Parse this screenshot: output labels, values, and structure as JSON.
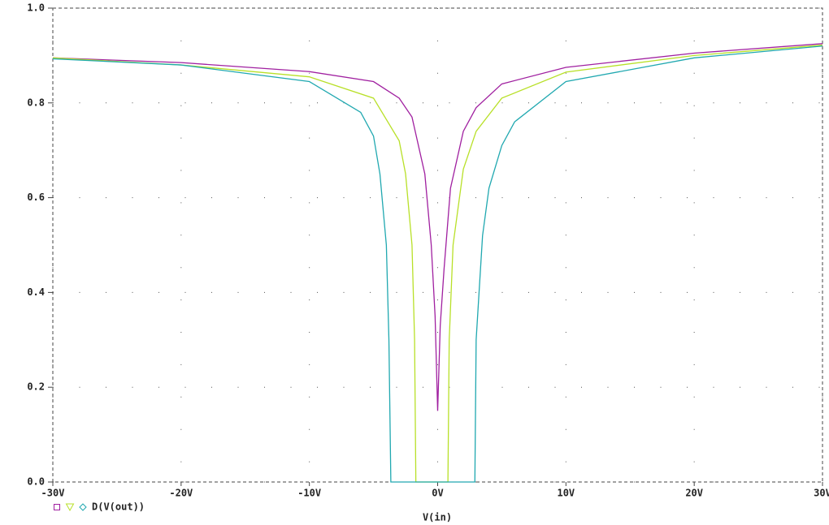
{
  "chart_data": {
    "type": "line",
    "x_label": "V(in)",
    "legend_label": "D(V(out))",
    "xlim": [
      -30,
      30
    ],
    "ylim": [
      0,
      1
    ],
    "xticks": [
      {
        "value": -30,
        "label": "-30V"
      },
      {
        "value": -20,
        "label": "-20V"
      },
      {
        "value": -10,
        "label": "-10V"
      },
      {
        "value": 0,
        "label": "0V"
      },
      {
        "value": 10,
        "label": "10V"
      },
      {
        "value": 20,
        "label": "20V"
      },
      {
        "value": 30,
        "label": "30V"
      }
    ],
    "yticks": [
      {
        "value": 0,
        "label": "0.0"
      },
      0.2,
      0.4,
      0.6,
      0.8,
      {
        "value": 1,
        "label": "1.0"
      }
    ],
    "grid": true,
    "series": [
      {
        "color": "#a020a0",
        "marker": "square",
        "x": [
          -30,
          -20,
          -10,
          -5,
          -3,
          -2,
          -1,
          -0.5,
          -0.2,
          0,
          0.2,
          0.5,
          1,
          2,
          3,
          5,
          10,
          20,
          30
        ],
        "values": [
          0.895,
          0.885,
          0.866,
          0.845,
          0.81,
          0.77,
          0.65,
          0.5,
          0.35,
          0.15,
          0.33,
          0.45,
          0.62,
          0.74,
          0.79,
          0.84,
          0.875,
          0.905,
          0.925
        ]
      },
      {
        "color": "#b8e028",
        "marker": "triangle",
        "x": [
          -30,
          -20,
          -10,
          -5,
          -3,
          -2.5,
          -2,
          -1.8,
          -1.7,
          0.8,
          0.9,
          1.2,
          2,
          3,
          5,
          10,
          20,
          30
        ],
        "values": [
          0.895,
          0.88,
          0.855,
          0.81,
          0.72,
          0.65,
          0.5,
          0.3,
          0,
          0,
          0.3,
          0.5,
          0.66,
          0.74,
          0.81,
          0.865,
          0.9,
          0.922
        ]
      },
      {
        "color": "#20a8b0",
        "marker": "diamond",
        "x": [
          -30,
          -20,
          -10,
          -6,
          -5,
          -4.5,
          -4,
          -3.8,
          -3.65,
          2.9,
          3,
          3.5,
          4,
          5,
          6,
          10,
          20,
          30
        ],
        "values": [
          0.893,
          0.88,
          0.845,
          0.78,
          0.73,
          0.65,
          0.5,
          0.3,
          0,
          0,
          0.3,
          0.52,
          0.62,
          0.71,
          0.76,
          0.845,
          0.895,
          0.92
        ]
      }
    ]
  }
}
